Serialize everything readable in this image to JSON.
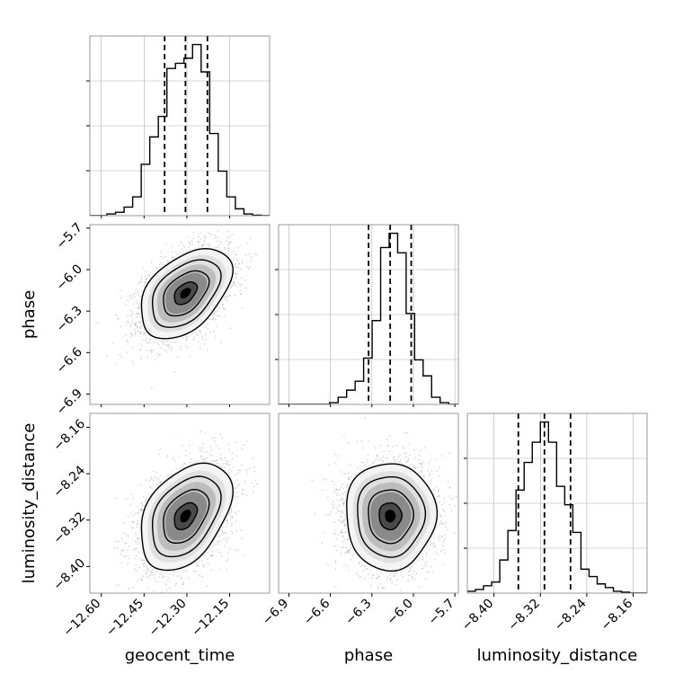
{
  "chart_data": {
    "type": "corner",
    "params": [
      "geocent_time",
      "phase",
      "luminosity_distance"
    ],
    "axis_labels": {
      "geocent_time": "geocent_time",
      "phase": "phase",
      "luminosity_distance": "luminosity_distance"
    },
    "ranges": {
      "geocent_time": [
        -12.64,
        -12.01
      ],
      "phase": [
        -6.975,
        -5.675
      ],
      "luminosity_distance": [
        -8.446,
        -8.136
      ]
    },
    "ticks": {
      "geocent_time": {
        "values": [
          -12.6,
          -12.45,
          -12.3,
          -12.15
        ],
        "labels": [
          "−12.60",
          "−12.45",
          "−12.30",
          "−12.15"
        ]
      },
      "phase": {
        "values": [
          -6.9,
          -6.6,
          -6.3,
          -6.0,
          -5.7
        ],
        "labels": [
          "−6.9",
          "−6.6",
          "−6.3",
          "−6.0",
          "−5.7"
        ]
      },
      "luminosity_distance": {
        "values": [
          -8.4,
          -8.32,
          -8.24,
          -8.16
        ],
        "labels": [
          "−8.40",
          "−8.32",
          "−8.24",
          "−8.16"
        ]
      }
    },
    "grid": true,
    "histograms": {
      "geocent_time": {
        "edges": [
          -12.64,
          -12.61,
          -12.58,
          -12.55,
          -12.52,
          -12.49,
          -12.46,
          -12.43,
          -12.4,
          -12.37,
          -12.34,
          -12.31,
          -12.28,
          -12.25,
          -12.22,
          -12.19,
          -12.16,
          -12.13,
          -12.1,
          -12.07,
          -12.04,
          -12.01
        ],
        "heights": [
          0,
          0,
          0.01,
          0.02,
          0.05,
          0.11,
          0.3,
          0.46,
          0.58,
          0.86,
          0.89,
          0.92,
          1.0,
          0.84,
          0.48,
          0.26,
          0.11,
          0.04,
          0.01,
          0.003,
          0
        ],
        "quantiles": [
          -12.378,
          -12.305,
          -12.228
        ]
      },
      "phase": {
        "edges": [
          -6.975,
          -6.9135,
          -6.852,
          -6.7905,
          -6.729,
          -6.6675,
          -6.606,
          -6.5445,
          -6.483,
          -6.4215,
          -6.36,
          -6.2985,
          -6.237,
          -6.1755,
          -6.114,
          -6.0525,
          -5.991,
          -5.9295,
          -5.868,
          -5.8065,
          -5.745,
          -5.675
        ],
        "heights": [
          0,
          0,
          0,
          0,
          0,
          0,
          0.01,
          0.04,
          0.08,
          0.13,
          0.26,
          0.47,
          0.88,
          0.96,
          0.85,
          0.51,
          0.25,
          0.16,
          0.04,
          0.01,
          0
        ],
        "quantiles": [
          -6.324,
          -6.168,
          -6.016
        ]
      },
      "luminosity_distance": {
        "edges": [
          -8.446,
          -8.432,
          -8.418,
          -8.404,
          -8.39,
          -8.376,
          -8.362,
          -8.348,
          -8.334,
          -8.32,
          -8.306,
          -8.292,
          -8.278,
          -8.264,
          -8.25,
          -8.236,
          -8.222,
          -8.208,
          -8.194,
          -8.18,
          -8.166,
          -8.136
        ],
        "heights": [
          0.01,
          0.02,
          0.04,
          0.06,
          0.18,
          0.34,
          0.56,
          0.71,
          0.82,
          0.93,
          0.82,
          0.58,
          0.48,
          0.33,
          0.13,
          0.09,
          0.05,
          0.03,
          0.01,
          0.005,
          0
        ],
        "quantiles": [
          -8.358,
          -8.313,
          -8.268
        ]
      }
    },
    "pairs": [
      {
        "x": "geocent_time",
        "y": "phase",
        "center": [
          -12.305,
          -6.17
        ],
        "sigma": [
          0.076,
          0.155
        ],
        "corr": 0.45,
        "contour_levels_sigma": [
          0.5,
          1.0,
          1.5,
          2.0
        ],
        "n_points": 4000
      },
      {
        "x": "geocent_time",
        "y": "luminosity_distance",
        "center": [
          -12.305,
          -8.313
        ],
        "sigma": [
          0.076,
          0.044
        ],
        "corr": 0.4,
        "contour_levels_sigma": [
          0.5,
          1.0,
          1.5,
          2.0
        ],
        "n_points": 4000
      },
      {
        "x": "phase",
        "y": "luminosity_distance",
        "center": [
          -6.168,
          -8.313
        ],
        "sigma": [
          0.155,
          0.044
        ],
        "corr": 0.0,
        "contour_levels_sigma": [
          0.5,
          1.0,
          1.5,
          2.0
        ],
        "n_points": 4000
      }
    ],
    "colors": {
      "line": "#000000",
      "frame": "#808080",
      "grid": "#b0b0b0",
      "points": "#7f7f7f"
    }
  }
}
